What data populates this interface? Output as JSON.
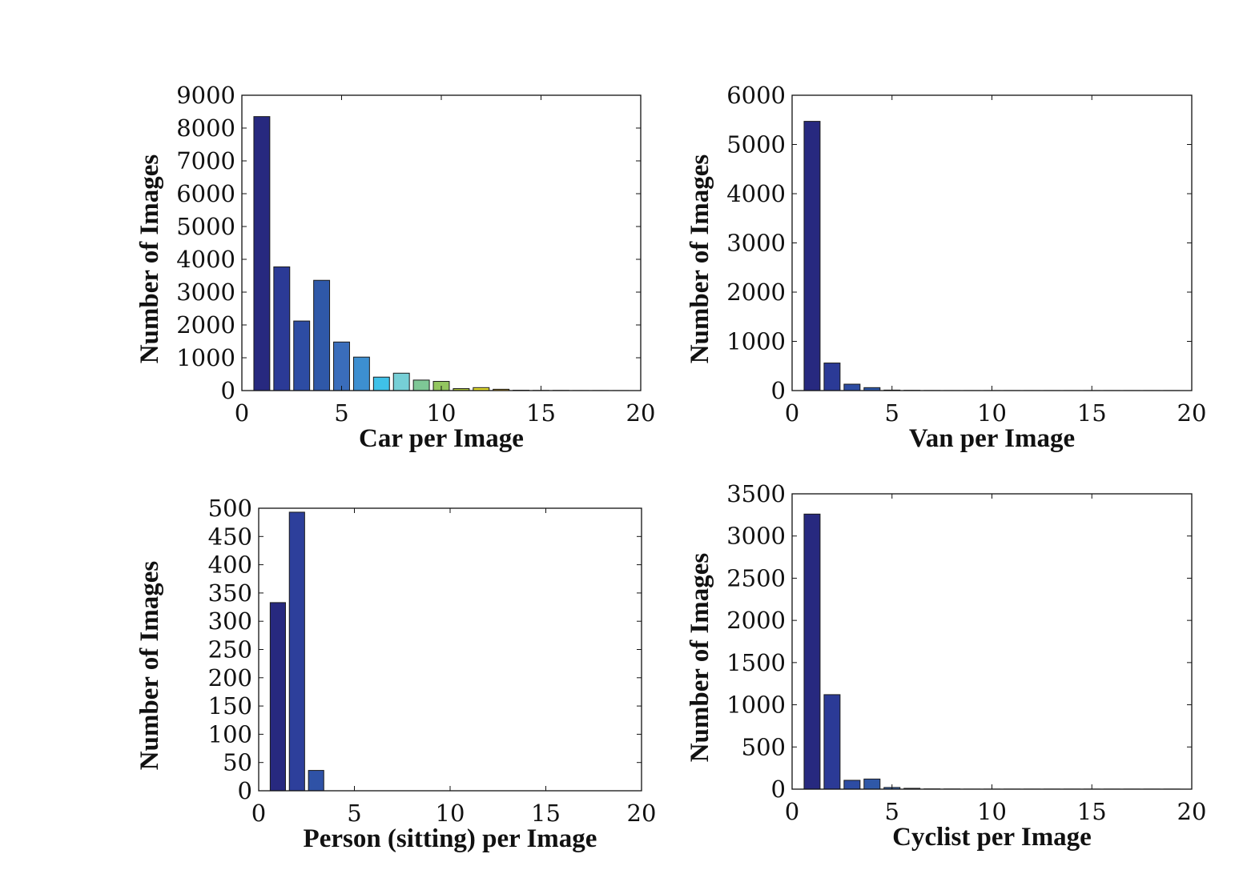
{
  "chart_data": [
    {
      "type": "bar",
      "xlabel": "Car per Image",
      "ylabel": "Number of Images",
      "xlim": [
        0,
        20
      ],
      "ylim": [
        0,
        9000
      ],
      "xticks": [
        0,
        5,
        10,
        15,
        20
      ],
      "yticks": [
        0,
        1000,
        2000,
        3000,
        4000,
        5000,
        6000,
        7000,
        8000,
        9000
      ],
      "x": [
        1,
        2,
        3,
        4,
        5,
        6,
        7,
        8,
        9,
        10,
        11,
        12,
        13,
        14,
        15,
        16,
        17,
        18,
        19
      ],
      "values": [
        8350,
        3770,
        2120,
        3360,
        1480,
        1020,
        410,
        530,
        320,
        280,
        60,
        90,
        40,
        10,
        5,
        5,
        2,
        2,
        1
      ],
      "colors": [
        "#27297f",
        "#2b3a96",
        "#2d4ca3",
        "#2f58a8",
        "#3a6dbb",
        "#3d8fd0",
        "#3fc1e8",
        "#76cfd6",
        "#7ec796",
        "#93c660",
        "#b0c93b",
        "#dfd92e",
        "#e9b427",
        "#eb8a25",
        "#ef6a24",
        "#e44a23",
        "#cc2a1f",
        "#b01d1a",
        "#8f1414"
      ]
    },
    {
      "type": "bar",
      "xlabel": "Van per Image",
      "ylabel": "Number of Images",
      "xlim": [
        0,
        20
      ],
      "ylim": [
        0,
        6000
      ],
      "xticks": [
        0,
        5,
        10,
        15,
        20
      ],
      "yticks": [
        0,
        1000,
        2000,
        3000,
        4000,
        5000,
        6000
      ],
      "x": [
        1,
        2,
        3,
        4,
        5,
        6,
        7,
        8,
        9,
        10,
        11,
        12,
        13,
        14,
        15,
        16,
        17,
        18,
        19
      ],
      "values": [
        5470,
        560,
        130,
        60,
        10,
        5,
        2,
        1,
        1,
        1,
        1,
        1,
        1,
        1,
        1,
        1,
        1,
        1,
        1
      ],
      "colors": [
        "#27297f",
        "#2b3a96",
        "#2d4ca3",
        "#2f58a8",
        "#3a6dbb",
        "#3d8fd0",
        "#3fc1e8",
        "#76cfd6",
        "#7ec796",
        "#93c660",
        "#b0c93b",
        "#dfd92e",
        "#e9b427",
        "#eb8a25",
        "#ef6a24",
        "#e44a23",
        "#cc2a1f",
        "#b01d1a",
        "#8f1414"
      ]
    },
    {
      "type": "bar",
      "xlabel": "Person (sitting) per Image",
      "ylabel": "Number of Images",
      "xlim": [
        0,
        20
      ],
      "ylim": [
        0,
        500
      ],
      "xticks": [
        0,
        5,
        10,
        15,
        20
      ],
      "yticks": [
        0,
        50,
        100,
        150,
        200,
        250,
        300,
        350,
        400,
        450,
        500
      ],
      "x": [
        1,
        2,
        3
      ],
      "values": [
        333,
        493,
        36
      ],
      "colors": [
        "#27297f",
        "#2d3f9b",
        "#2f52a6"
      ]
    },
    {
      "type": "bar",
      "xlabel": "Cyclist per Image",
      "ylabel": "Number of Images",
      "xlim": [
        0,
        20
      ],
      "ylim": [
        0,
        3500
      ],
      "xticks": [
        0,
        5,
        10,
        15,
        20
      ],
      "yticks": [
        0,
        500,
        1000,
        1500,
        2000,
        2500,
        3000,
        3500
      ],
      "x": [
        1,
        2,
        3,
        4,
        5,
        6,
        7,
        8,
        9,
        10,
        11,
        12,
        13,
        14,
        15,
        16,
        17,
        18,
        19
      ],
      "values": [
        3260,
        1120,
        105,
        120,
        20,
        10,
        3,
        2,
        1,
        1,
        1,
        1,
        1,
        1,
        1,
        1,
        1,
        1,
        1
      ],
      "colors": [
        "#27297f",
        "#2b3a96",
        "#2d4ca3",
        "#2f58a8",
        "#3a6dbb",
        "#3d8fd0",
        "#3fc1e8",
        "#76cfd6",
        "#7ec796",
        "#93c660",
        "#b0c93b",
        "#dfd92e",
        "#e9b427",
        "#eb8a25",
        "#ef6a24",
        "#e44a23",
        "#cc2a1f",
        "#b01d1a",
        "#8f1414"
      ]
    }
  ]
}
